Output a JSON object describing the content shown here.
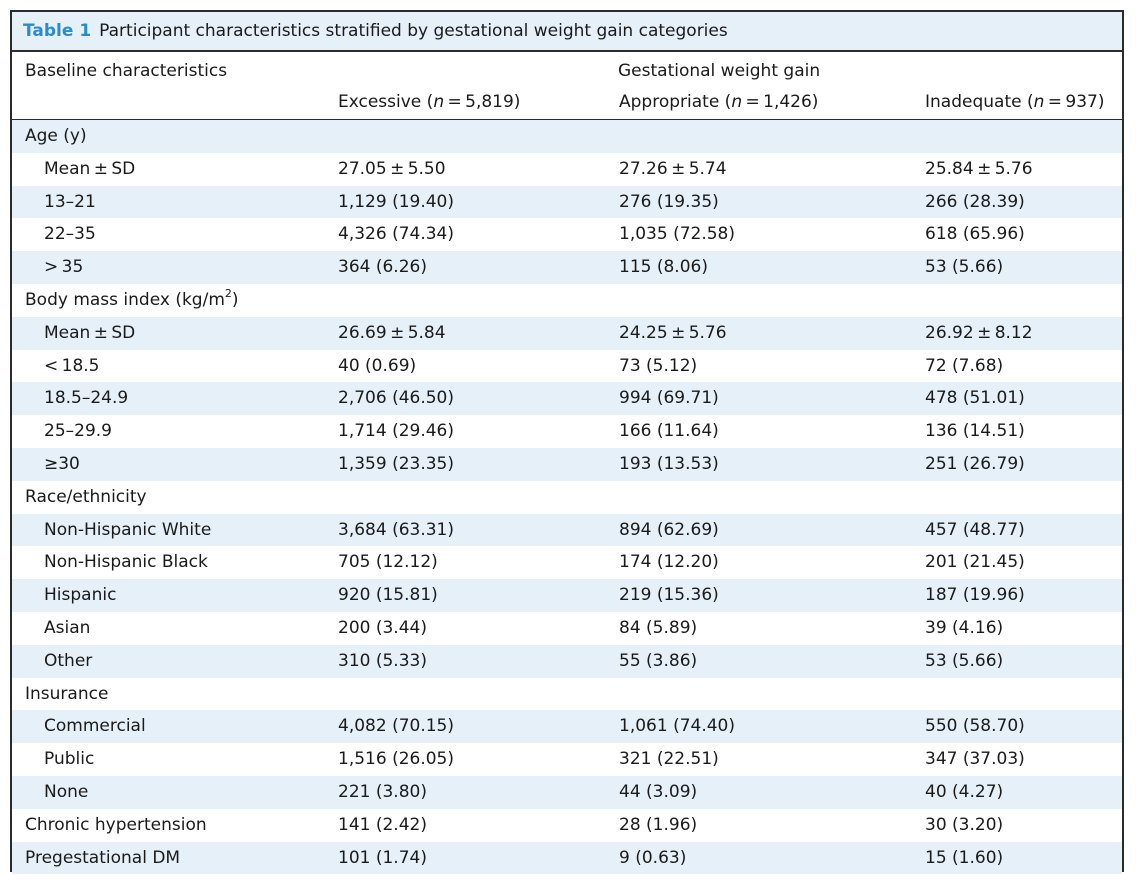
{
  "caption": {
    "label": "Table 1",
    "title": "Participant characteristics stratified by gestational weight gain categories"
  },
  "header": {
    "baseline": "Baseline characteristics",
    "group": "Gestational weight gain",
    "col1_pre": "Excessive (",
    "col1_n": "n",
    "col1_post": " = 5,819)",
    "col2_pre": "Appropriate (",
    "col2_n": "n",
    "col2_post": " = 1,426)",
    "col3_pre": "Inadequate (",
    "col3_n": "n",
    "col3_post": " = 937)"
  },
  "rows": [
    {
      "label": "Age (y)",
      "indent": false,
      "excessive": "",
      "appropriate": "",
      "inadequate": ""
    },
    {
      "label": "Mean ± SD",
      "indent": true,
      "excessive": "27.05 ± 5.50",
      "appropriate": "27.26 ± 5.74",
      "inadequate": "25.84 ± 5.76"
    },
    {
      "label": "13–21",
      "indent": true,
      "excessive": "1,129 (19.40)",
      "appropriate": "276 (19.35)",
      "inadequate": "266 (28.39)"
    },
    {
      "label": "22–35",
      "indent": true,
      "excessive": "4,326 (74.34)",
      "appropriate": "1,035 (72.58)",
      "inadequate": "618 (65.96)"
    },
    {
      "label": "> 35",
      "indent": true,
      "excessive": "364 (6.26)",
      "appropriate": "115 (8.06)",
      "inadequate": "53 (5.66)"
    },
    {
      "label": "Body mass index (kg/m",
      "sup": "2",
      "label_tail": ")",
      "indent": false,
      "excessive": "",
      "appropriate": "",
      "inadequate": ""
    },
    {
      "label": "Mean ± SD",
      "indent": true,
      "excessive": "26.69 ± 5.84",
      "appropriate": "24.25 ± 5.76",
      "inadequate": "26.92 ± 8.12"
    },
    {
      "label": "< 18.5",
      "indent": true,
      "excessive": "40 (0.69)",
      "appropriate": "73 (5.12)",
      "inadequate": "72 (7.68)"
    },
    {
      "label": "18.5–24.9",
      "indent": true,
      "excessive": "2,706 (46.50)",
      "appropriate": "994 (69.71)",
      "inadequate": "478 (51.01)"
    },
    {
      "label": "25–29.9",
      "indent": true,
      "excessive": "1,714 (29.46)",
      "appropriate": "166 (11.64)",
      "inadequate": "136 (14.51)"
    },
    {
      "label": "≥30",
      "indent": true,
      "excessive": "1,359 (23.35)",
      "appropriate": "193 (13.53)",
      "inadequate": "251 (26.79)"
    },
    {
      "label": "Race/ethnicity",
      "indent": false,
      "excessive": "",
      "appropriate": "",
      "inadequate": ""
    },
    {
      "label": "Non-Hispanic White",
      "indent": true,
      "excessive": "3,684 (63.31)",
      "appropriate": "894 (62.69)",
      "inadequate": "457 (48.77)"
    },
    {
      "label": "Non-Hispanic Black",
      "indent": true,
      "excessive": "705 (12.12)",
      "appropriate": "174 (12.20)",
      "inadequate": "201 (21.45)"
    },
    {
      "label": "Hispanic",
      "indent": true,
      "excessive": "920 (15.81)",
      "appropriate": "219 (15.36)",
      "inadequate": "187 (19.96)"
    },
    {
      "label": "Asian",
      "indent": true,
      "excessive": "200 (3.44)",
      "appropriate": "84 (5.89)",
      "inadequate": "39 (4.16)"
    },
    {
      "label": "Other",
      "indent": true,
      "excessive": "310 (5.33)",
      "appropriate": "55 (3.86)",
      "inadequate": "53 (5.66)"
    },
    {
      "label": "Insurance",
      "indent": false,
      "excessive": "",
      "appropriate": "",
      "inadequate": ""
    },
    {
      "label": "Commercial",
      "indent": true,
      "excessive": "4,082 (70.15)",
      "appropriate": "1,061 (74.40)",
      "inadequate": "550 (58.70)"
    },
    {
      "label": "Public",
      "indent": true,
      "excessive": "1,516 (26.05)",
      "appropriate": "321 (22.51)",
      "inadequate": "347 (37.03)"
    },
    {
      "label": "None",
      "indent": true,
      "excessive": "221 (3.80)",
      "appropriate": "44 (3.09)",
      "inadequate": "40 (4.27)"
    },
    {
      "label": "Chronic hypertension",
      "indent": false,
      "excessive": "141 (2.42)",
      "appropriate": "28 (1.96)",
      "inadequate": "30 (3.20)"
    },
    {
      "label": "Pregestational DM",
      "indent": false,
      "excessive": "101 (1.74)",
      "appropriate": "9 (0.63)",
      "inadequate": "15 (1.60)"
    }
  ]
}
